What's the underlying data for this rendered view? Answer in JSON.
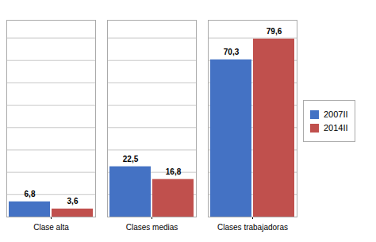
{
  "chart_data": {
    "type": "bar",
    "categories": [
      "Clase alta",
      "Clases medias",
      "Clases trabajadoras"
    ],
    "series": [
      {
        "name": "2007II",
        "color": "#4472C4",
        "values": [
          6.8,
          22.5,
          70.3
        ],
        "value_labels": [
          "6,8",
          "22,5",
          "70,3"
        ]
      },
      {
        "name": "2014II",
        "color": "#C0504D",
        "values": [
          3.6,
          16.8,
          79.6
        ],
        "value_labels": [
          "3,6",
          "16,8",
          "79,6"
        ]
      }
    ],
    "ylim": [
      0,
      88
    ],
    "yticks": [
      0,
      10,
      20,
      30,
      40,
      50,
      60,
      70,
      80
    ],
    "grid": true,
    "legend": "right",
    "data_labels": true,
    "tick_labels": "x"
  }
}
